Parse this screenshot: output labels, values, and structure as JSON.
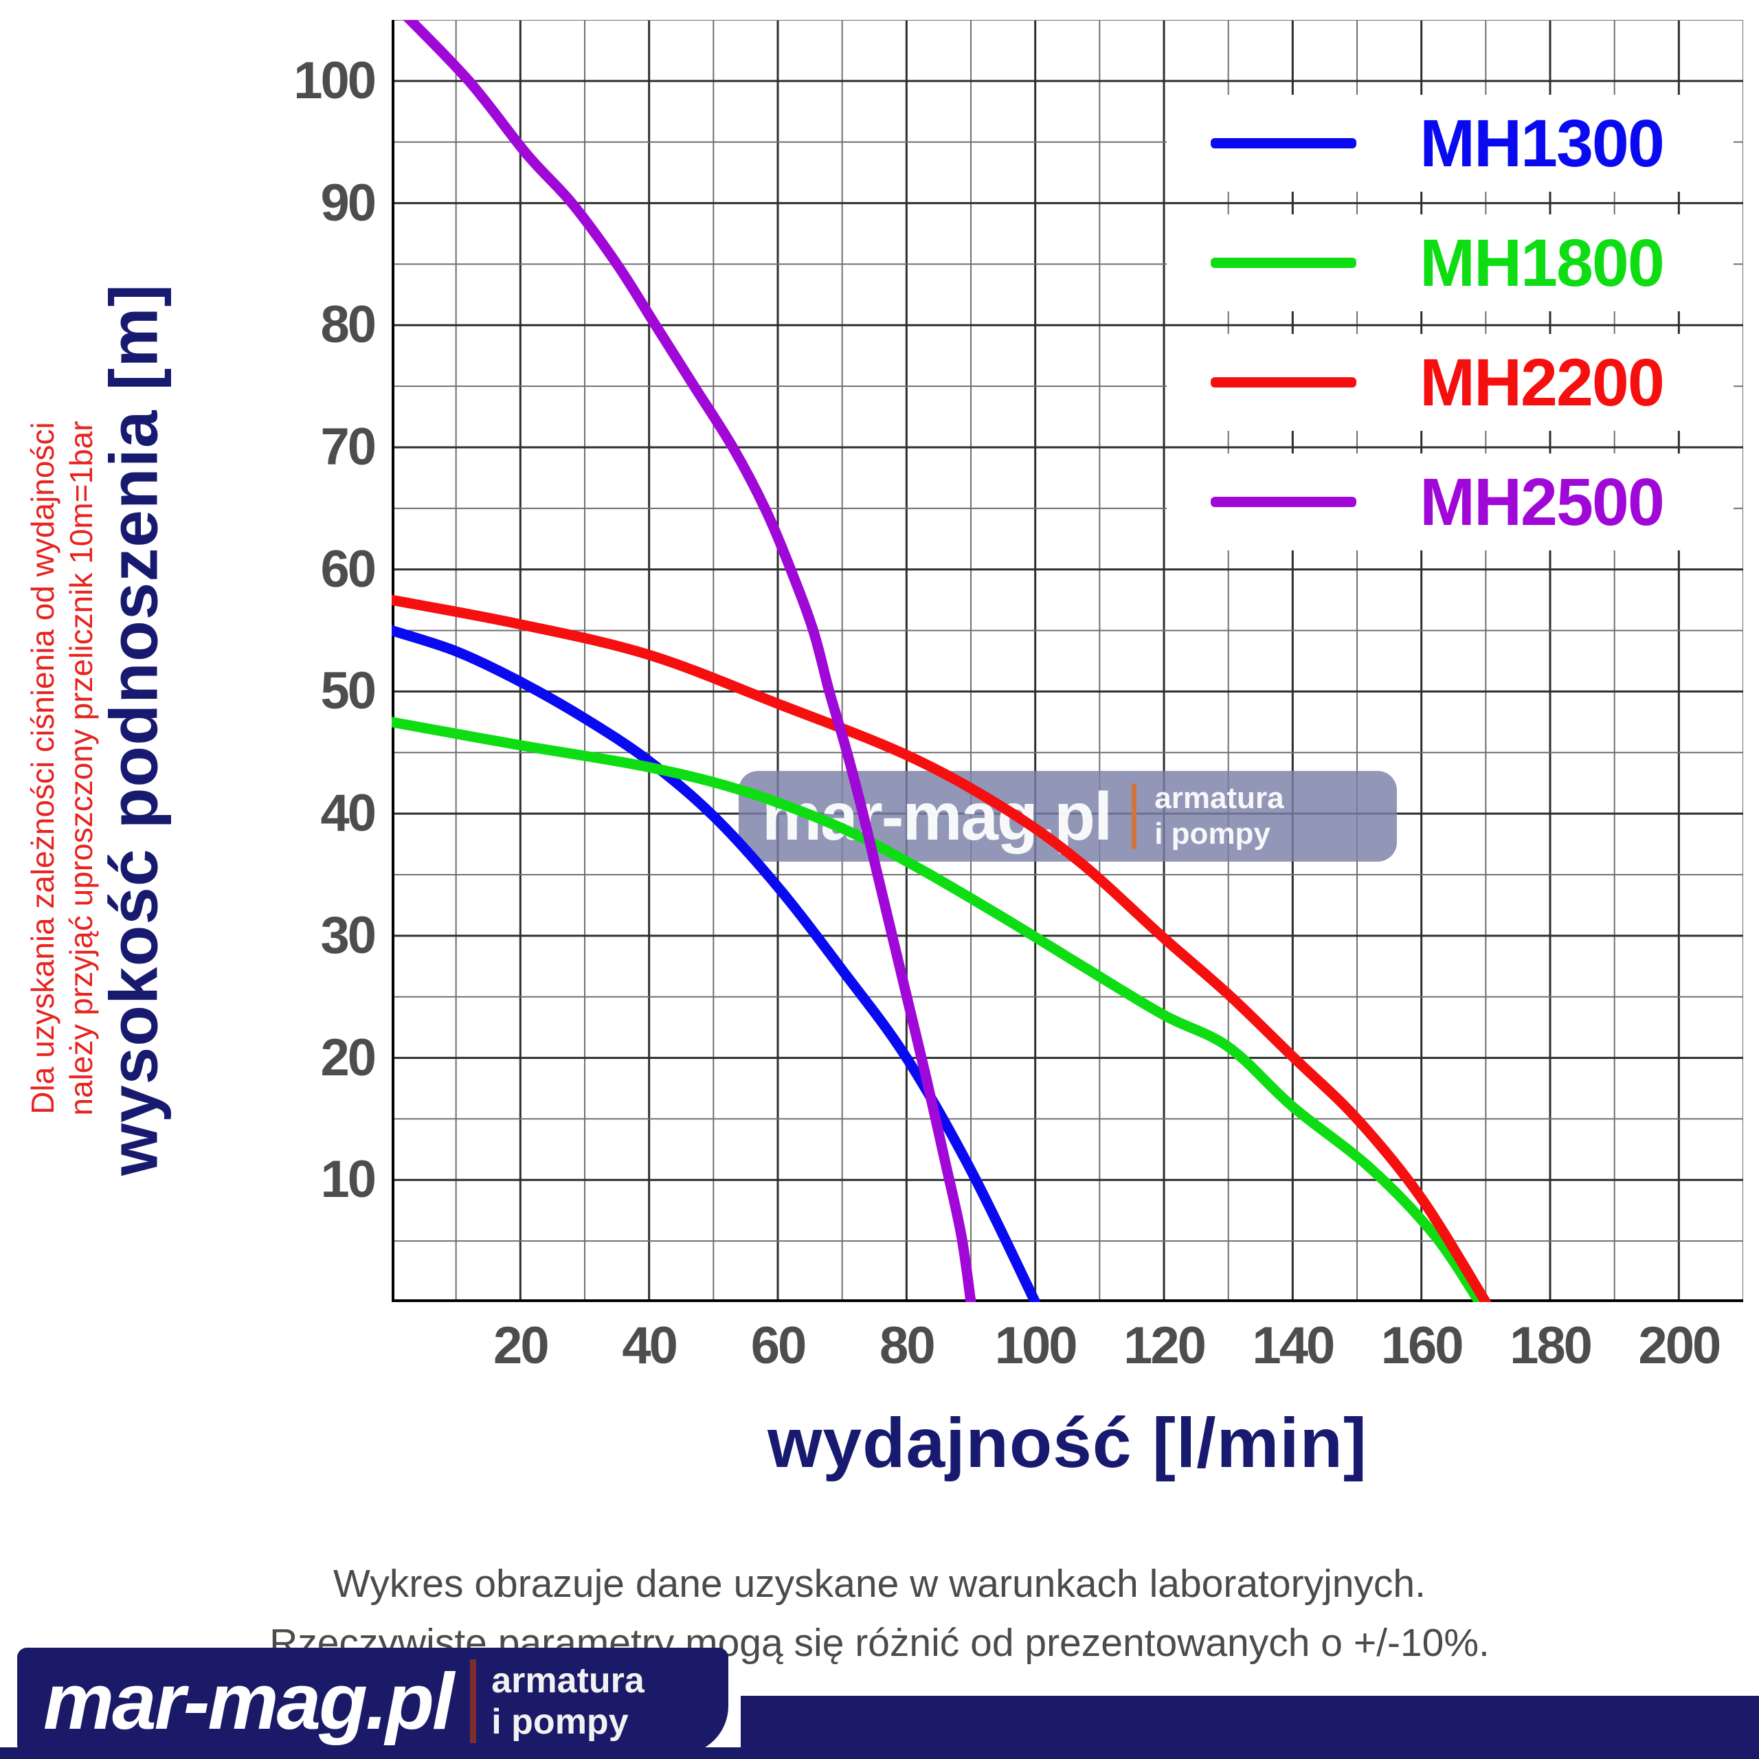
{
  "side_note": {
    "line1": "Dla uzyskania zależności ciśnienia od wydajności",
    "line2": "należy przyjąć uproszczony przelicznik 10m=1bar"
  },
  "chart_data": {
    "type": "line",
    "xlabel": "wydajność [l/min]",
    "ylabel": "wysokość podnoszenia [m]",
    "xlim": [
      0,
      210
    ],
    "ylim": [
      0,
      105
    ],
    "x_ticks": [
      20,
      40,
      60,
      80,
      100,
      120,
      140,
      160,
      180,
      200
    ],
    "y_ticks": [
      10,
      20,
      30,
      40,
      50,
      60,
      70,
      80,
      90,
      100
    ],
    "x_minor_step": 10,
    "y_minor_step": 5,
    "grid": true,
    "legend_position": "top-right",
    "series": [
      {
        "name": "MH1300",
        "color": "#0a0af0",
        "points": [
          [
            0,
            55
          ],
          [
            10,
            53.3
          ],
          [
            20,
            50.8
          ],
          [
            30,
            47.8
          ],
          [
            40,
            44.3
          ],
          [
            50,
            39.8
          ],
          [
            60,
            34
          ],
          [
            70,
            27.2
          ],
          [
            80,
            20
          ],
          [
            90,
            10.8
          ],
          [
            100,
            0
          ]
        ]
      },
      {
        "name": "MH1800",
        "color": "#0ddd12",
        "points": [
          [
            0,
            47.5
          ],
          [
            20,
            45.6
          ],
          [
            40,
            43.8
          ],
          [
            55,
            41.8
          ],
          [
            70,
            38.8
          ],
          [
            82,
            35.5
          ],
          [
            95,
            31.5
          ],
          [
            108,
            27.3
          ],
          [
            120,
            23.5
          ],
          [
            130,
            20.9
          ],
          [
            140,
            16
          ],
          [
            152,
            11
          ],
          [
            162,
            5.5
          ],
          [
            169,
            0
          ]
        ]
      },
      {
        "name": "MH2200",
        "color": "#f50f0f",
        "points": [
          [
            0,
            57.5
          ],
          [
            20,
            55.5
          ],
          [
            40,
            53
          ],
          [
            60,
            49
          ],
          [
            80,
            44.8
          ],
          [
            95,
            40.5
          ],
          [
            107,
            36
          ],
          [
            120,
            29.8
          ],
          [
            130,
            25.2
          ],
          [
            140,
            20.1
          ],
          [
            150,
            15
          ],
          [
            160,
            8.5
          ],
          [
            170,
            0
          ]
        ]
      },
      {
        "name": "MH2500",
        "color": "#a008d8",
        "points": [
          [
            1,
            106
          ],
          [
            12,
            100
          ],
          [
            21,
            94
          ],
          [
            28,
            90
          ],
          [
            35,
            85
          ],
          [
            41,
            80
          ],
          [
            47,
            75
          ],
          [
            53,
            70
          ],
          [
            58,
            65
          ],
          [
            62,
            60
          ],
          [
            65.5,
            55
          ],
          [
            68,
            50
          ],
          [
            70.5,
            45.5
          ],
          [
            73,
            40.5
          ],
          [
            75.5,
            35
          ],
          [
            78,
            29.5
          ],
          [
            80.5,
            24
          ],
          [
            83,
            18.5
          ],
          [
            86,
            11.5
          ],
          [
            88.5,
            5.5
          ],
          [
            90,
            0
          ]
        ]
      }
    ]
  },
  "watermark": {
    "brand": "mar-mag.pl",
    "tag_line1": "armatura",
    "tag_line2": "i pompy"
  },
  "disclaimer": {
    "line1": "Wykres obrazuje dane uzyskane w warunkach laboratoryjnych.",
    "line2": "Rzeczywiste parametry mogą się różnić od prezentowanych o +/-10%."
  },
  "footer": {
    "brand": "mar-mag.pl",
    "tag_line1": "armatura",
    "tag_line2": "i pompy"
  },
  "colors": {
    "title_navy": "#181a70",
    "tick_gray": "#4d4d4d",
    "side_note_red": "#e62420",
    "grid_major": "#2e2e2e",
    "grid_minor": "#6f6f6f",
    "watermark_box": "#7a80a8",
    "watermark_divider_orange": "#d0763a",
    "footer_navy": "#1a1a68",
    "logo_divider_maroon": "#7c2e2e"
  }
}
